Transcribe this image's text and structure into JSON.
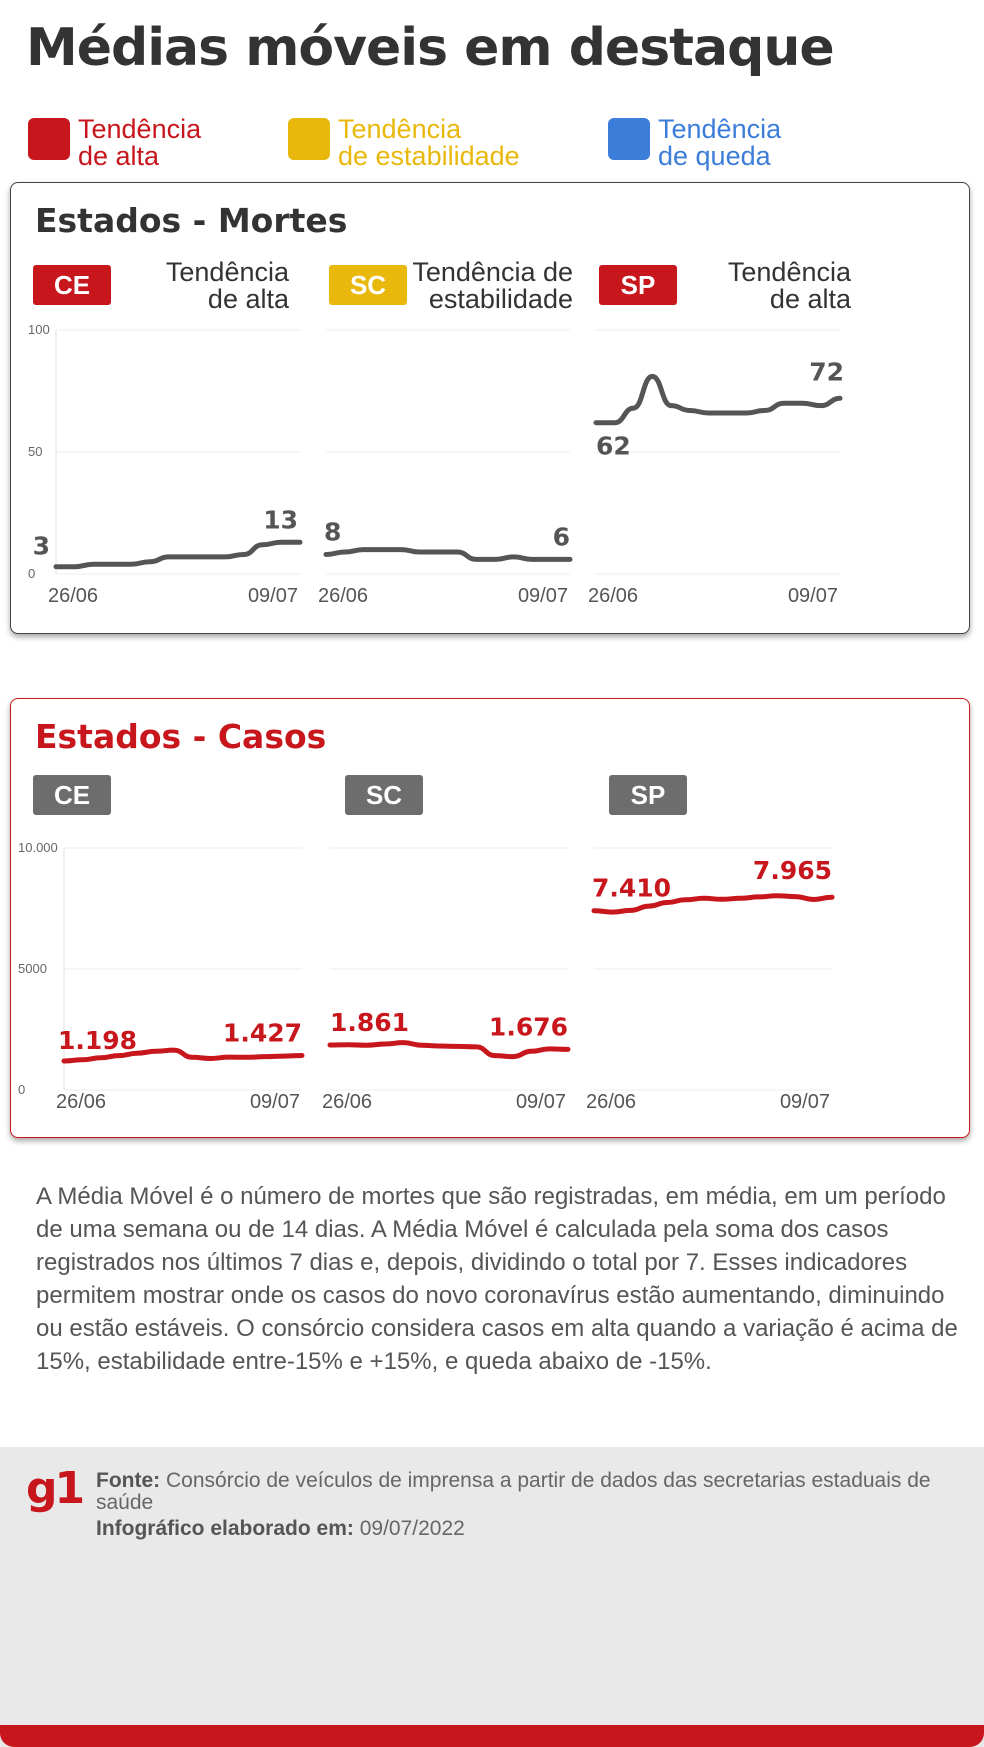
{
  "title": "Médias móveis em destaque",
  "legend": [
    {
      "label": "Tendência de alta",
      "line1": "Tendência",
      "line2": "de alta",
      "color": "#c8161d"
    },
    {
      "label": "Tendência de estabilidade",
      "line1": "Tendência",
      "line2": "de estabilidade",
      "color": "#e8b80c"
    },
    {
      "label": "Tendência de queda",
      "line1": "Tendência",
      "line2": "de queda",
      "color": "#3c7dd9"
    }
  ],
  "deaths_panel": {
    "title": "Estados - Mortes",
    "states": [
      {
        "state": "CE",
        "trend_line1": "Tendência",
        "trend_line2": "de alta",
        "badge_color": "#c8161d"
      },
      {
        "state": "SC",
        "trend_line1": "Tendência de",
        "trend_line2": "estabilidade",
        "badge_color": "#e8b80c"
      },
      {
        "state": "SP",
        "trend_line1": "Tendência",
        "trend_line2": "de alta",
        "badge_color": "#c8161d"
      }
    ],
    "y_ticks": [
      "100",
      "50",
      "0"
    ],
    "date_start": "26/06",
    "date_end": "09/07"
  },
  "cases_panel": {
    "title": "Estados - Casos",
    "states": [
      {
        "state": "CE",
        "badge_color": "#6d6d6d"
      },
      {
        "state": "SC",
        "badge_color": "#6d6d6d"
      },
      {
        "state": "SP",
        "badge_color": "#6d6d6d"
      }
    ],
    "y_ticks": [
      "10.000",
      "5000",
      "0"
    ],
    "date_start": "26/06",
    "date_end": "09/07"
  },
  "chart_data": [
    {
      "type": "line",
      "title": "Estados - Mortes",
      "ylim": [
        0,
        100
      ],
      "x_start": "26/06",
      "x_end": "09/07",
      "series": [
        {
          "name": "CE",
          "start_label": "3",
          "end_label": "13",
          "values": [
            3,
            3,
            4,
            4,
            4,
            5,
            7,
            7,
            7,
            7,
            8,
            12,
            13,
            13
          ]
        },
        {
          "name": "SC",
          "start_label": "8",
          "end_label": "6",
          "values": [
            8,
            9,
            10,
            10,
            10,
            9,
            9,
            9,
            6,
            6,
            7,
            6,
            6,
            6
          ]
        },
        {
          "name": "SP",
          "start_label": "62",
          "end_label": "72",
          "values": [
            62,
            62,
            68,
            81,
            69,
            67,
            66,
            66,
            66,
            67,
            70,
            70,
            69,
            72
          ]
        }
      ],
      "line_color": "#555555"
    },
    {
      "type": "line",
      "title": "Estados - Casos",
      "ylim": [
        0,
        10000
      ],
      "x_start": "26/06",
      "x_end": "09/07",
      "series": [
        {
          "name": "CE",
          "start_label": "1.198",
          "end_label": "1.427",
          "values": [
            1198,
            1250,
            1330,
            1420,
            1520,
            1600,
            1650,
            1350,
            1300,
            1360,
            1350,
            1380,
            1400,
            1427
          ]
        },
        {
          "name": "SC",
          "start_label": "1.861",
          "end_label": "1.676",
          "values": [
            1861,
            1870,
            1850,
            1900,
            1960,
            1850,
            1820,
            1800,
            1780,
            1420,
            1380,
            1600,
            1700,
            1676
          ]
        },
        {
          "name": "SP",
          "start_label": "7.410",
          "end_label": "7.965",
          "values": [
            7410,
            7350,
            7420,
            7600,
            7750,
            7860,
            7920,
            7880,
            7920,
            7980,
            8030,
            7990,
            7870,
            7965
          ]
        }
      ],
      "line_color": "#c8161d"
    }
  ],
  "explanation": "A Média Móvel é o número de mortes que são registradas, em média, em um período de uma semana ou de 14 dias. A Média Móvel é calculada pela soma dos casos registrados nos últimos 7 dias e, depois, dividindo o total por 7. Esses indicadores permitem mostrar onde os casos do novo coronavírus estão aumentando, diminuindo ou estão estáveis. O consórcio considera casos em alta quando a variação é acima de 15%, estabilidade entre-15% e +15%, e queda abaixo de -15%.",
  "footer": {
    "logo": "g1",
    "source_label": "Fonte:",
    "source_text": "Consórcio de veículos de imprensa a partir de dados das secretarias estaduais de saúde",
    "date_label": "Infográfico elaborado em:",
    "date_value": "09/07/2022"
  }
}
